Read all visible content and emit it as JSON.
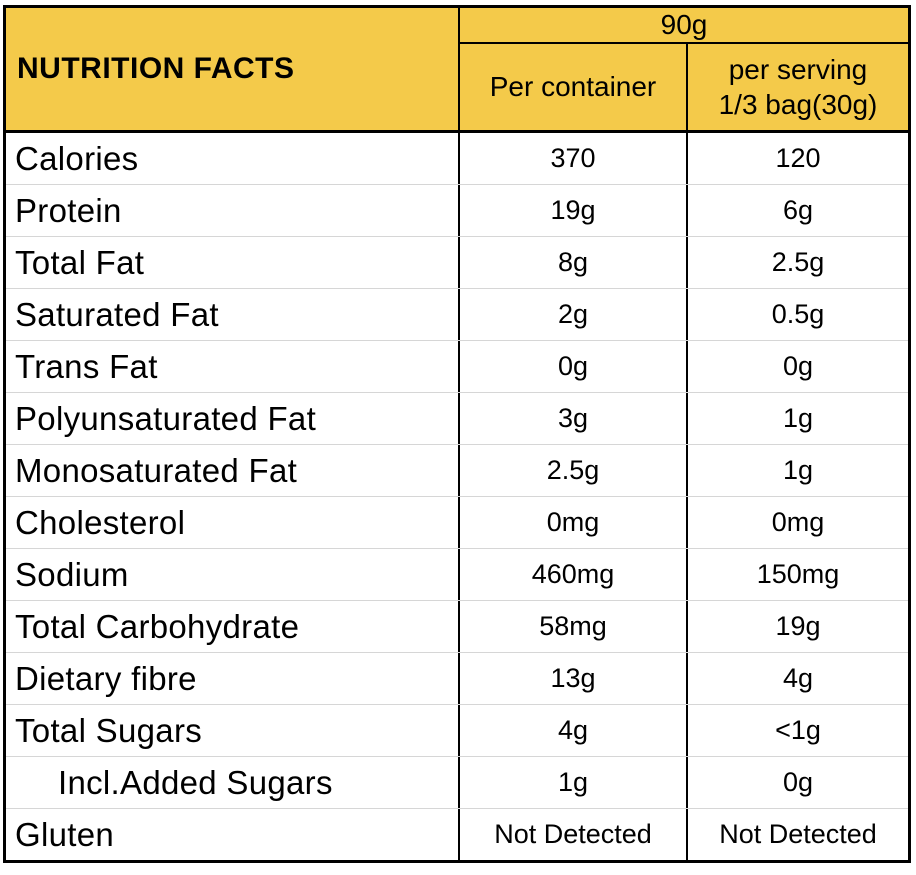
{
  "header": {
    "title": "NUTRITION FACTS",
    "amount": "90g",
    "per_container_label": "Per container",
    "per_serving_line1": "per serving",
    "per_serving_line2": "1/3 bag(30g)"
  },
  "rows": [
    {
      "label": "Calories",
      "per_container": "370",
      "per_serving": "120"
    },
    {
      "label": "Protein",
      "per_container": "19g",
      "per_serving": "6g"
    },
    {
      "label": "Total Fat",
      "per_container": "8g",
      "per_serving": "2.5g"
    },
    {
      "label": "Saturated Fat",
      "per_container": "2g",
      "per_serving": "0.5g"
    },
    {
      "label": "Trans Fat",
      "per_container": "0g",
      "per_serving": "0g"
    },
    {
      "label": "Polyunsaturated Fat",
      "per_container": "3g",
      "per_serving": "1g"
    },
    {
      "label": "Monosaturated Fat",
      "per_container": "2.5g",
      "per_serving": "1g"
    },
    {
      "label": "Cholesterol",
      "per_container": "0mg",
      "per_serving": "0mg"
    },
    {
      "label": "Sodium",
      "per_container": "460mg",
      "per_serving": "150mg"
    },
    {
      "label": "Total Carbohydrate",
      "per_container": "58mg",
      "per_serving": "19g"
    },
    {
      "label": "Dietary fibre",
      "per_container": "13g",
      "per_serving": "4g"
    },
    {
      "label": "Total Sugars",
      "per_container": "4g",
      "per_serving": "<1g"
    },
    {
      "label": "Incl.Added Sugars",
      "per_container": "1g",
      "per_serving": "0g"
    },
    {
      "label": "Gluten",
      "per_container": "Not Detected",
      "per_serving": "Not Detected"
    }
  ],
  "colors": {
    "header_bg": "#F4CA4A",
    "border": "#000000",
    "row_divider": "#D6D6D6"
  }
}
